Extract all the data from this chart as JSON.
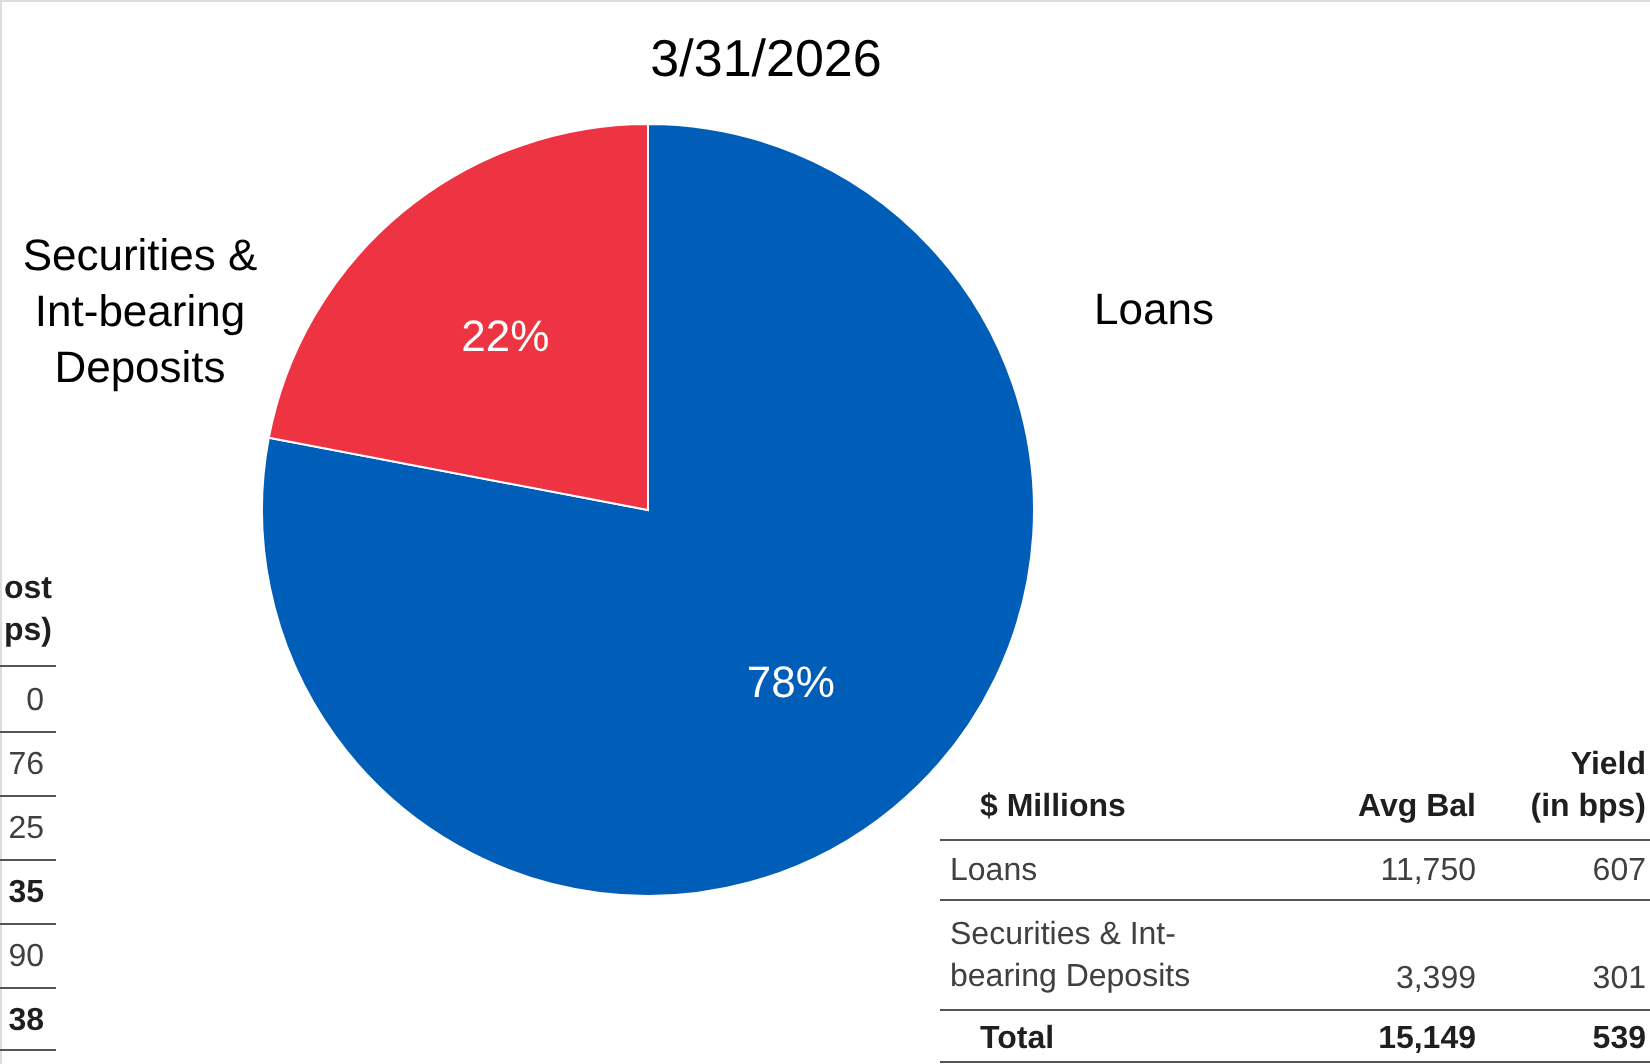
{
  "chart_data": {
    "type": "pie",
    "title": "3/31/2026",
    "categories": [
      "Loans",
      "Securities & Int-bearing Deposits"
    ],
    "values": [
      78,
      22
    ],
    "colors": [
      "#005eb8",
      "#ee3443"
    ],
    "value_labels": [
      "78%",
      "22%"
    ],
    "annotations": [
      "$ Millions",
      "Avg Bal",
      "Yield (in bps)",
      "Loans",
      "11,750",
      "607",
      "Securities & Int-bearing Deposits",
      "3,399",
      "301",
      "Total",
      "15,149",
      "539",
      "ost ps)",
      "0",
      "76",
      "25",
      "35",
      "90",
      "38"
    ]
  }
}
